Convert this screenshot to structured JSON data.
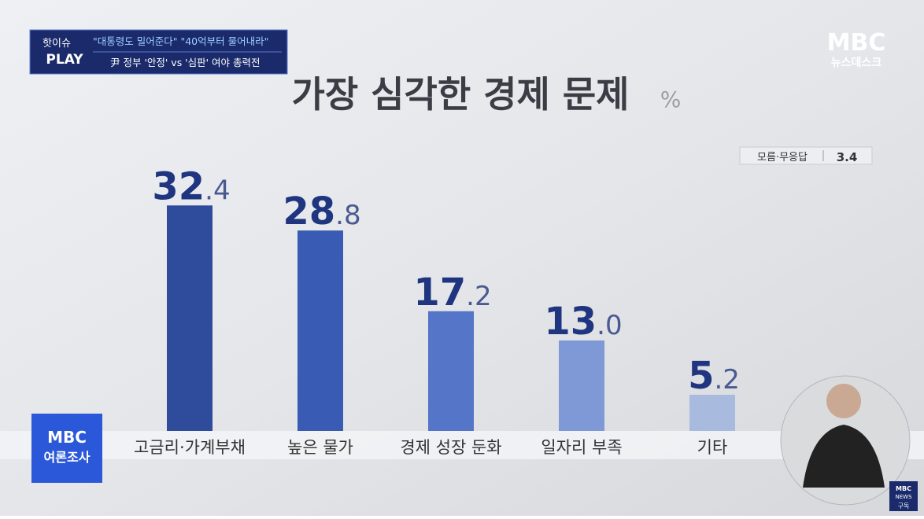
{
  "chart_data": {
    "type": "bar",
    "title": "가장 심각한 경제 문제",
    "unit": "%",
    "categories": [
      "고금리·가계부채",
      "높은 물가",
      "경제 성장 둔화",
      "일자리 부족",
      "기타"
    ],
    "values": [
      32.4,
      28.8,
      17.2,
      13.0,
      5.2
    ],
    "value_labels": [
      "32.4",
      "28.8",
      "17.2",
      "13.0",
      "5.2"
    ],
    "colors": [
      "#2f4b9c",
      "#3a5bb4",
      "#5575c8",
      "#7f98d6",
      "#a9badf"
    ],
    "other": {
      "label": "모름·무응답",
      "value": 3.4
    }
  },
  "banner": {
    "tag_top": "핫이슈",
    "tag_bottom": "PLAY",
    "headline": "\"대통령도 밀어준다\" \"40억부터 물어내라\"",
    "subline": "尹 정부 '안정' vs '심판' 여야 총력전"
  },
  "logo": {
    "brand": "MBC",
    "program": "뉴스데스크"
  },
  "poll_badge": {
    "brand": "MBC",
    "label": "여론조사"
  },
  "corner_badge": {
    "brand": "MBC",
    "sub": "NEWS",
    "action": "구독"
  }
}
